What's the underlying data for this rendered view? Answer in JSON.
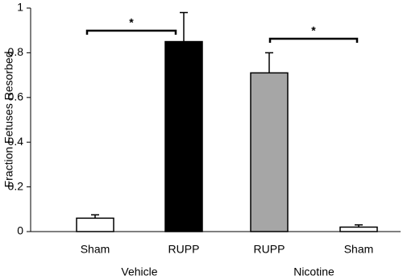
{
  "chart_data": {
    "type": "bar",
    "y_label": "Fraction Fetuses Resorbed",
    "categories": [
      "Sham",
      "RUPP",
      "RUPP",
      "Sham"
    ],
    "groups": [
      "Vehicle",
      "Nicotine"
    ],
    "values": [
      0.06,
      0.85,
      0.71,
      0.02
    ],
    "errors": [
      0.015,
      0.13,
      0.09,
      0.01
    ],
    "colors": [
      "#ffffff",
      "#000000",
      "#a6a6a6",
      "#ffffff"
    ],
    "ylim": [
      0,
      1
    ],
    "yticks": [
      0,
      0.2,
      0.4,
      0.6,
      0.8,
      1
    ],
    "annotations": [
      "*",
      "*"
    ]
  }
}
